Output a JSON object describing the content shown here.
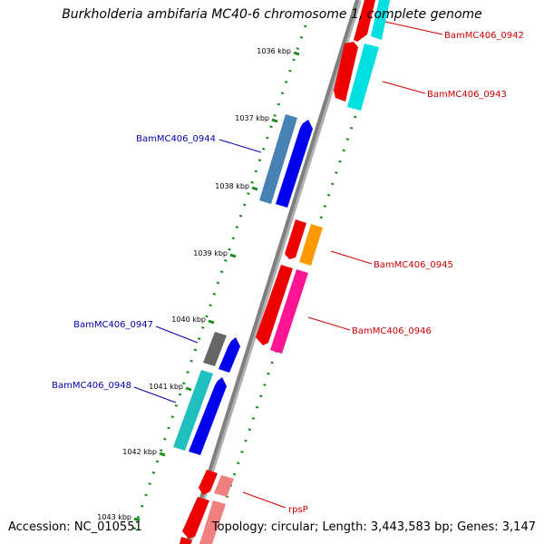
{
  "title": "Burkholderia ambifaria MC40-6 chromosome 1, complete genome",
  "footer": {
    "accession": "Accession: NC_010551",
    "topology": "Topology: circular; Length: 3,443,583 bp; Genes: 3,147"
  },
  "ticks": [
    {
      "label": "1036 kbp"
    },
    {
      "label": "1037 kbp"
    },
    {
      "label": "1038 kbp"
    },
    {
      "label": "1039 kbp"
    },
    {
      "label": "1040 kbp"
    },
    {
      "label": "1041 kbp"
    },
    {
      "label": "1042 kbp"
    },
    {
      "label": "1043 kbp"
    }
  ],
  "genes": [
    {
      "name": "BamMC406_0942",
      "color": "#cc0000"
    },
    {
      "name": "BamMC406_0943",
      "color": "#cc0000"
    },
    {
      "name": "BamMC406_0944",
      "color": "#0000aa"
    },
    {
      "name": "BamMC406_0945",
      "color": "#cc0000"
    },
    {
      "name": "BamMC406_0946",
      "color": "#cc0000"
    },
    {
      "name": "BamMC406_0947",
      "color": "#0000aa"
    },
    {
      "name": "BamMC406_0948",
      "color": "#0000aa"
    },
    {
      "name": "rpsP",
      "color": "#cc0000"
    }
  ],
  "colors": {
    "backbone": "#808080",
    "tick": "#1a8a1a",
    "red": "#ee0000",
    "cyan": "#00e0e0",
    "blue": "#0000ee",
    "steel": "#4682b4",
    "orange": "#ff9900",
    "pink": "#ff1493",
    "gray": "#666666",
    "teal": "#20c0c0",
    "salmon": "#f08080"
  }
}
